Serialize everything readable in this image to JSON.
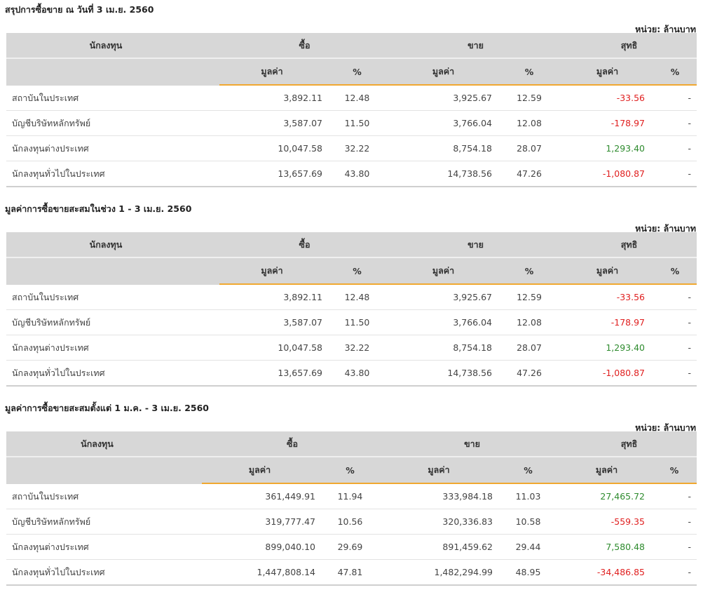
{
  "unit_label": "หน่วย: ล้านบาท",
  "headers": {
    "investor": "นักลงทุน",
    "buy": "ซื้อ",
    "sell": "ขาย",
    "net": "สุทธิ",
    "value": "มูลค่า",
    "percent": "%"
  },
  "colors": {
    "accent": "#f0a830",
    "negative": "#e02020",
    "positive": "#2e8b2e",
    "header_bg": "#d7d7d7"
  },
  "sections": [
    {
      "title": "สรุปการซื้อขาย ณ วันที่ 3 เม.ย. 2560",
      "rows": [
        {
          "name": "สถาบันในประเทศ",
          "buy_value": "3,892.11",
          "buy_pct": "12.48",
          "sell_value": "3,925.67",
          "sell_pct": "12.59",
          "net_value": "-33.56",
          "net_pct": "-"
        },
        {
          "name": "บัญชีบริษัทหลักทรัพย์",
          "buy_value": "3,587.07",
          "buy_pct": "11.50",
          "sell_value": "3,766.04",
          "sell_pct": "12.08",
          "net_value": "-178.97",
          "net_pct": "-"
        },
        {
          "name": "นักลงทุนต่างประเทศ",
          "buy_value": "10,047.58",
          "buy_pct": "32.22",
          "sell_value": "8,754.18",
          "sell_pct": "28.07",
          "net_value": "1,293.40",
          "net_pct": "-"
        },
        {
          "name": "นักลงทุนทั่วไปในประเทศ",
          "buy_value": "13,657.69",
          "buy_pct": "43.80",
          "sell_value": "14,738.56",
          "sell_pct": "47.26",
          "net_value": "-1,080.87",
          "net_pct": "-"
        }
      ]
    },
    {
      "title": "มูลค่าการซื้อขายสะสมในช่วง 1 - 3 เม.ย. 2560",
      "rows": [
        {
          "name": "สถาบันในประเทศ",
          "buy_value": "3,892.11",
          "buy_pct": "12.48",
          "sell_value": "3,925.67",
          "sell_pct": "12.59",
          "net_value": "-33.56",
          "net_pct": "-"
        },
        {
          "name": "บัญชีบริษัทหลักทรัพย์",
          "buy_value": "3,587.07",
          "buy_pct": "11.50",
          "sell_value": "3,766.04",
          "sell_pct": "12.08",
          "net_value": "-178.97",
          "net_pct": "-"
        },
        {
          "name": "นักลงทุนต่างประเทศ",
          "buy_value": "10,047.58",
          "buy_pct": "32.22",
          "sell_value": "8,754.18",
          "sell_pct": "28.07",
          "net_value": "1,293.40",
          "net_pct": "-"
        },
        {
          "name": "นักลงทุนทั่วไปในประเทศ",
          "buy_value": "13,657.69",
          "buy_pct": "43.80",
          "sell_value": "14,738.56",
          "sell_pct": "47.26",
          "net_value": "-1,080.87",
          "net_pct": "-"
        }
      ]
    },
    {
      "title": "มูลค่าการซื้อขายสะสมตั้งแต่ 1 ม.ค. - 3 เม.ย. 2560",
      "rows": [
        {
          "name": "สถาบันในประเทศ",
          "buy_value": "361,449.91",
          "buy_pct": "11.94",
          "sell_value": "333,984.18",
          "sell_pct": "11.03",
          "net_value": "27,465.72",
          "net_pct": "-"
        },
        {
          "name": "บัญชีบริษัทหลักทรัพย์",
          "buy_value": "319,777.47",
          "buy_pct": "10.56",
          "sell_value": "320,336.83",
          "sell_pct": "10.58",
          "net_value": "-559.35",
          "net_pct": "-"
        },
        {
          "name": "นักลงทุนต่างประเทศ",
          "buy_value": "899,040.10",
          "buy_pct": "29.69",
          "sell_value": "891,459.62",
          "sell_pct": "29.44",
          "net_value": "7,580.48",
          "net_pct": "-"
        },
        {
          "name": "นักลงทุนทั่วไปในประเทศ",
          "buy_value": "1,447,808.14",
          "buy_pct": "47.81",
          "sell_value": "1,482,294.99",
          "sell_pct": "48.95",
          "net_value": "-34,486.85",
          "net_pct": "-"
        }
      ]
    }
  ]
}
